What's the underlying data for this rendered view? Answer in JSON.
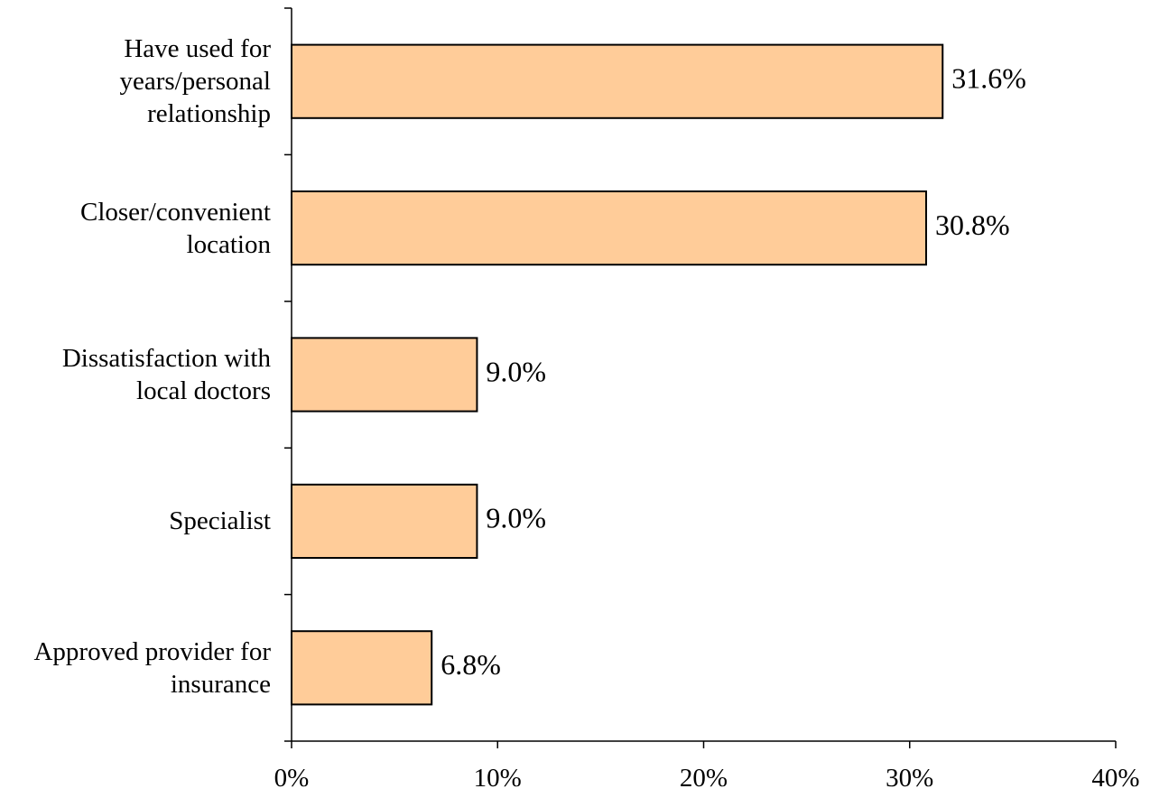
{
  "chart_data": {
    "type": "bar",
    "orientation": "horizontal",
    "title": "",
    "xlabel": "",
    "ylabel": "",
    "categories": [
      [
        "Have used for",
        "years/personal",
        "relationship"
      ],
      [
        "Closer/convenient",
        "location"
      ],
      [
        "Dissatisfaction with",
        "local doctors"
      ],
      [
        "Specialist"
      ],
      [
        "Approved provider for",
        "insurance"
      ]
    ],
    "values": [
      31.6,
      30.8,
      9.0,
      9.0,
      6.8
    ],
    "value_labels": [
      "31.6%",
      "30.8%",
      "9.0%",
      "9.0%",
      "6.8%"
    ],
    "xlim": [
      0,
      40
    ],
    "xticks": [
      0,
      10,
      20,
      30,
      40
    ],
    "xtick_labels": [
      "0%",
      "10%",
      "20%",
      "30%",
      "40%"
    ],
    "grid": false,
    "legend": "none",
    "colors": {
      "bar_fill": "#FFCC99",
      "bar_stroke": "#000000",
      "axis": "#000000"
    }
  }
}
